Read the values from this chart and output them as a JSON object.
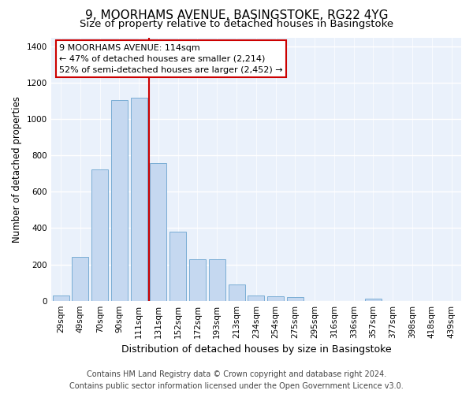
{
  "title": "9, MOORHAMS AVENUE, BASINGSTOKE, RG22 4YG",
  "subtitle": "Size of property relative to detached houses in Basingstoke",
  "xlabel": "Distribution of detached houses by size in Basingstoke",
  "ylabel": "Number of detached properties",
  "footer_line1": "Contains HM Land Registry data © Crown copyright and database right 2024.",
  "footer_line2": "Contains public sector information licensed under the Open Government Licence v3.0.",
  "bar_labels": [
    "29sqm",
    "49sqm",
    "70sqm",
    "90sqm",
    "111sqm",
    "131sqm",
    "152sqm",
    "172sqm",
    "193sqm",
    "213sqm",
    "234sqm",
    "254sqm",
    "275sqm",
    "295sqm",
    "316sqm",
    "336sqm",
    "357sqm",
    "377sqm",
    "398sqm",
    "418sqm",
    "439sqm"
  ],
  "bar_values": [
    30,
    240,
    725,
    1105,
    1120,
    760,
    380,
    230,
    230,
    90,
    30,
    25,
    20,
    0,
    0,
    0,
    10,
    0,
    0,
    0,
    0
  ],
  "bar_color": "#c5d8f0",
  "bar_edge_color": "#7aadd4",
  "ylim": [
    0,
    1450
  ],
  "yticks": [
    0,
    200,
    400,
    600,
    800,
    1000,
    1200,
    1400
  ],
  "vline_x": 4.5,
  "vline_color": "#cc0000",
  "annotation_line1": "9 MOORHAMS AVENUE: 114sqm",
  "annotation_line2": "← 47% of detached houses are smaller (2,214)",
  "annotation_line3": "52% of semi-detached houses are larger (2,452) →",
  "annotation_box_facecolor": "#ffffff",
  "annotation_box_edgecolor": "#cc0000",
  "bg_color": "#eaf1fb",
  "fig_bg_color": "#ffffff",
  "grid_color": "#ffffff",
  "title_fontsize": 11,
  "subtitle_fontsize": 9.5,
  "ylabel_fontsize": 8.5,
  "xlabel_fontsize": 9,
  "tick_fontsize": 7.5,
  "annotation_fontsize": 8,
  "footer_fontsize": 7
}
